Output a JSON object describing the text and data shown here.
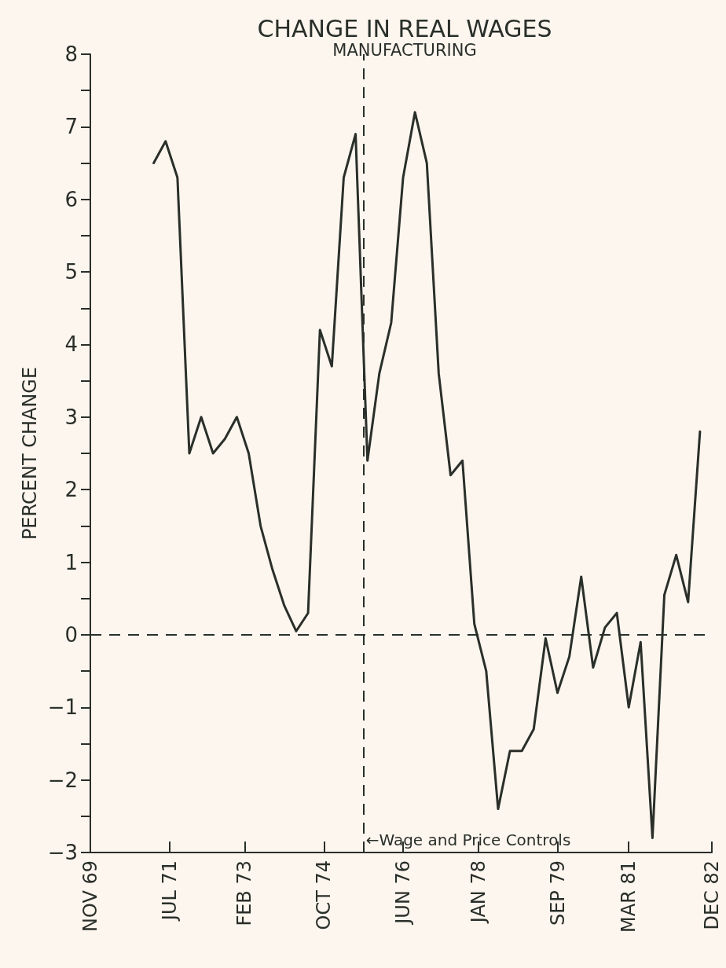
{
  "chart_data": {
    "type": "line",
    "title": "CHANGE IN REAL WAGES",
    "subtitle": "MANUFACTURING",
    "ylabel": "PERCENT CHANGE",
    "x": [
      "1971-03",
      "1971-06",
      "1971-09",
      "1971-12",
      "1972-03",
      "1972-06",
      "1972-09",
      "1972-12",
      "1973-03",
      "1973-06",
      "1973-09",
      "1973-12",
      "1974-03",
      "1974-06",
      "1974-09",
      "1974-12",
      "1975-03",
      "1975-06",
      "1975-09",
      "1975-12",
      "1976-03",
      "1976-06",
      "1976-09",
      "1976-12",
      "1977-03",
      "1977-06",
      "1977-09",
      "1977-12",
      "1978-03",
      "1978-06",
      "1978-09",
      "1978-12",
      "1979-03",
      "1979-06",
      "1979-09",
      "1979-12",
      "1980-03",
      "1980-06",
      "1980-09",
      "1980-12",
      "1981-03",
      "1981-06",
      "1981-09",
      "1981-12",
      "1982-03",
      "1982-06",
      "1982-09"
    ],
    "series": [
      {
        "color": "#2a2f2a",
        "values": [
          6.5,
          6.8,
          6.3,
          2.5,
          3.0,
          2.5,
          2.7,
          3.0,
          2.5,
          1.5,
          0.9,
          0.4,
          0.05,
          0.3,
          4.2,
          3.7,
          6.3,
          6.9,
          2.4,
          3.6,
          4.3,
          6.3,
          7.2,
          6.5,
          3.6,
          2.2,
          2.4,
          0.15,
          -0.5,
          -2.4,
          -1.6,
          -1.6,
          -1.3,
          -0.05,
          -0.8,
          -0.3,
          0.8,
          -0.45,
          0.1,
          0.3,
          -1.0,
          -0.1,
          -2.8,
          0.55,
          1.1,
          0.45,
          2.8
        ]
      }
    ],
    "xlim": [
      "1969-11",
      "1982-12"
    ],
    "xticks": [
      {
        "value": "1969-11",
        "label": "NOV 69"
      },
      {
        "value": "1971-07",
        "label": "JUL 71"
      },
      {
        "value": "1973-02",
        "label": "FEB 73"
      },
      {
        "value": "1974-10",
        "label": "OCT 74"
      },
      {
        "value": "1976-06",
        "label": "JUN 76"
      },
      {
        "value": "1978-01",
        "label": "JAN 78"
      },
      {
        "value": "1979-09",
        "label": "SEP 79"
      },
      {
        "value": "1981-03",
        "label": "MAR 81"
      },
      {
        "value": "1982-12",
        "label": "DEC 82"
      }
    ],
    "ylim": [
      -3,
      8
    ],
    "yticks": [
      -3,
      {
        "value": -2.5,
        "label": null
      },
      -2,
      {
        "value": -1.5,
        "label": null
      },
      -1,
      {
        "value": -0.5,
        "label": null
      },
      0,
      {
        "value": 0.5,
        "label": null
      },
      1,
      {
        "value": 1.5,
        "label": null
      },
      2,
      {
        "value": 2.5,
        "label": null
      },
      3,
      {
        "value": 3.5,
        "label": null
      },
      4,
      {
        "value": 4.5,
        "label": null
      },
      5,
      {
        "value": 5.5,
        "label": null
      },
      6,
      {
        "value": 6.5,
        "label": null
      },
      7,
      {
        "value": 7.5,
        "label": null
      },
      8
    ],
    "grid": false,
    "marker": "none",
    "line_style": "solid",
    "ref_lines": [
      {
        "axis": "y",
        "value": 0,
        "line_style": "dashed",
        "color": "#2a2f2a"
      },
      {
        "axis": "x",
        "value": "1975-08",
        "label": "←Wage and Price Controls",
        "line_style": "dashed",
        "color": "#2a2f2a"
      }
    ]
  }
}
